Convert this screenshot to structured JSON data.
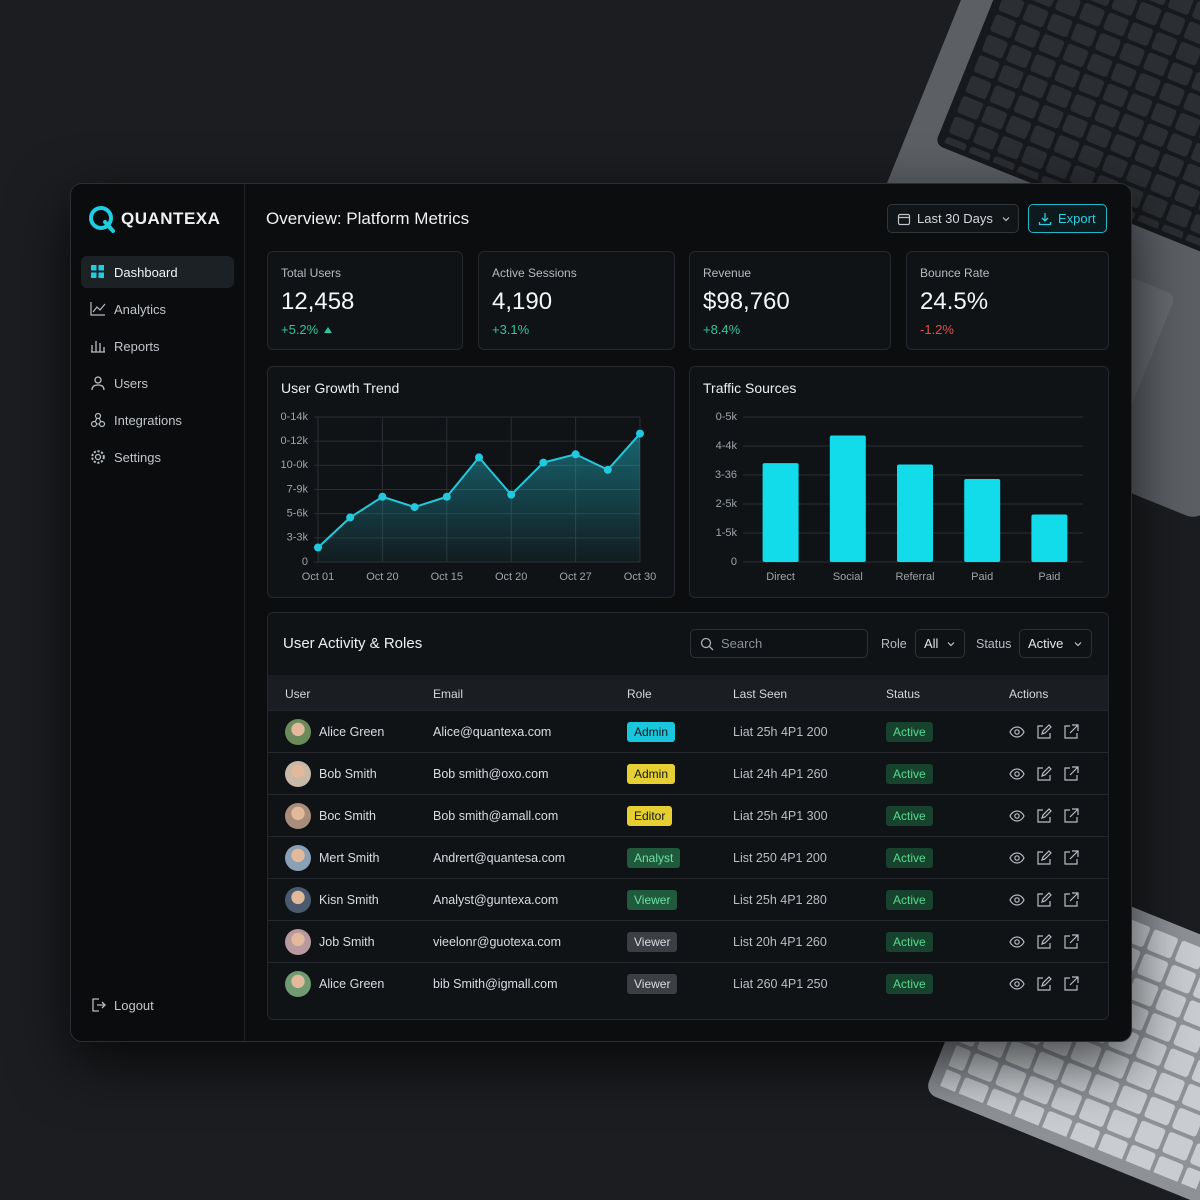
{
  "sidebar": {
    "brand": "QUANTEXA",
    "nav": [
      "Dashboard",
      "Analytics",
      "Reports",
      "Users",
      "Integrations",
      "Settings"
    ],
    "logout": "Logout"
  },
  "header": {
    "title": "Overview: Platform Metrics",
    "date_filter": "Last 30 Days",
    "export": "Export"
  },
  "kpis": [
    {
      "label": "Total Users",
      "value": "12,458",
      "change": "+5.2%"
    },
    {
      "label": "Active Sessions",
      "value": "4,190",
      "change": "+3.1%"
    },
    {
      "label": "Revenue",
      "value": "$98,760",
      "change": "+8.4%"
    },
    {
      "label": "Bounce Rate",
      "value": "24.5%",
      "change": "-1.2%"
    }
  ],
  "chart_data": [
    {
      "type": "line",
      "title": "User Growth Trend",
      "categories": [
        "Oct 01",
        null,
        "Oct 20",
        null,
        "Oct 15",
        null,
        "Oct 20",
        null,
        "Oct 27",
        null,
        "Oct 30"
      ],
      "values": [
        1400,
        4300,
        6300,
        5300,
        6300,
        10100,
        6500,
        9600,
        10400,
        8900,
        12400
      ],
      "color": "#22c9de",
      "ylim": [
        0,
        14000
      ],
      "yticks": [
        0,
        {
          "value": 2333,
          "label": "3-3k"
        },
        {
          "value": 4667,
          "label": "5-6k"
        },
        {
          "value": 7000,
          "label": "7-9k"
        },
        {
          "value": 9333,
          "label": "10-0k"
        },
        {
          "value": 11667,
          "label": "0-12k"
        },
        {
          "value": 14000,
          "label": "0-14k"
        }
      ],
      "grid": true
    },
    {
      "type": "bar",
      "title": "Traffic Sources",
      "categories": [
        "Direct",
        "Social",
        "Referral",
        "Paid",
        "Paid"
      ],
      "values": [
        3750,
        4800,
        3700,
        3150,
        1800
      ],
      "color": "#12dbea",
      "ylim": [
        0,
        5500
      ],
      "yticks": [
        0,
        {
          "value": 1100,
          "label": "1-5k"
        },
        {
          "value": 2200,
          "label": "2-5k"
        },
        {
          "value": 3300,
          "label": "3-36"
        },
        {
          "value": 4400,
          "label": "4-4k"
        },
        {
          "value": 5500,
          "label": "0-5k"
        }
      ],
      "grid": true
    }
  ],
  "table": {
    "title": "User Activity & Roles",
    "search": "Search",
    "role_label": "Role",
    "role_value": "All",
    "status_label": "Status",
    "status_value": "Active",
    "columns": [
      "User",
      "Email",
      "Role",
      "Last Seen",
      "Status",
      "Actions"
    ],
    "rows": [
      {
        "user": "Alice Green",
        "email": "Alice@quantexa.com",
        "role": "Admin",
        "role_color": "#19c6dc",
        "last_seen": "Liat 25h 4P1 200",
        "status": "Active"
      },
      {
        "user": "Bob Smith",
        "email": "Bob smith@oxo.com",
        "role": "Admin",
        "role_color": "#e6cf33",
        "last_seen": "Liat 24h 4P1 260",
        "status": "Active"
      },
      {
        "user": "Boc Smith",
        "email": "Bob smith@amall.com",
        "role": "Editor",
        "role_color": "#e6cf33",
        "last_seen": "Liat 25h 4P1 300",
        "status": "Active"
      },
      {
        "user": "Mert Smith",
        "email": "Andrert@quantesa.com",
        "role": "Analyst",
        "role_color": "#1f5a3c",
        "last_seen": "List 250 4P1 200",
        "status": "Active"
      },
      {
        "user": "Kisn Smith",
        "email": "Analyst@guntexa.com",
        "role": "Viewer",
        "role_color": "#1f5a3c",
        "last_seen": "List 25h 4P1 280",
        "status": "Active"
      },
      {
        "user": "Job Smith",
        "email": "vieelonr@guotexa.com",
        "role": "Viewer",
        "role_color": "#3b3f44",
        "last_seen": "List 20h 4P1 260",
        "status": "Active"
      },
      {
        "user": "Alice Green",
        "email": "bib Smith@igmall.com",
        "role": "Viewer",
        "role_color": "#3b3f44",
        "last_seen": "Liat 260 4P1 250",
        "status": "Active"
      }
    ]
  }
}
